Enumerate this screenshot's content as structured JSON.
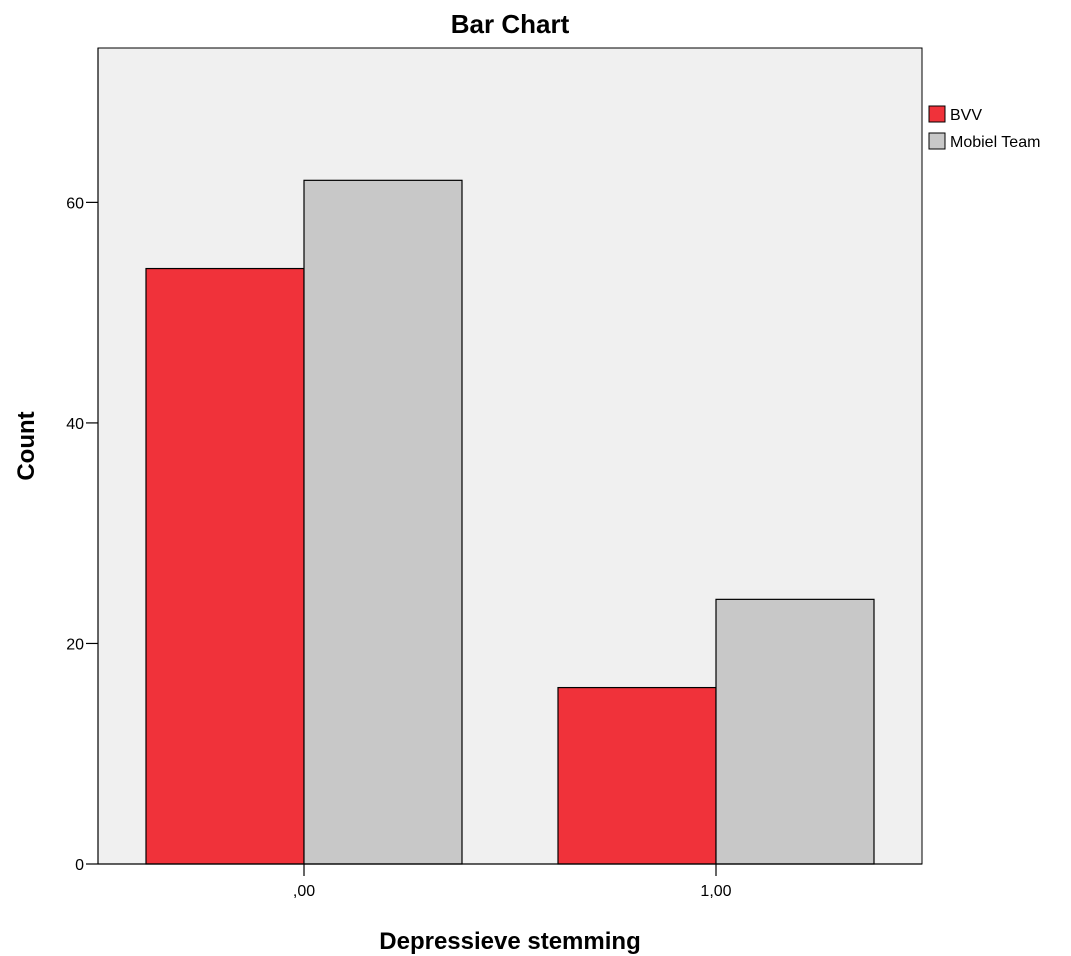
{
  "chart_data": {
    "type": "bar",
    "title": "Bar Chart",
    "xlabel": "Depressieve stemming",
    "ylabel": "Count",
    "categories": [
      ",00",
      "1,00"
    ],
    "series": [
      {
        "name": "BVV",
        "values": [
          54,
          16
        ],
        "color": "#f0323a"
      },
      {
        "name": "Mobiel Team",
        "values": [
          62,
          24
        ],
        "color": "#c8c8c8"
      }
    ],
    "yticks": [
      0,
      20,
      40,
      60
    ],
    "ylim": [
      0,
      74
    ],
    "grid": false,
    "legend_position": "top-right",
    "plot_background": "#f0f0f0"
  }
}
